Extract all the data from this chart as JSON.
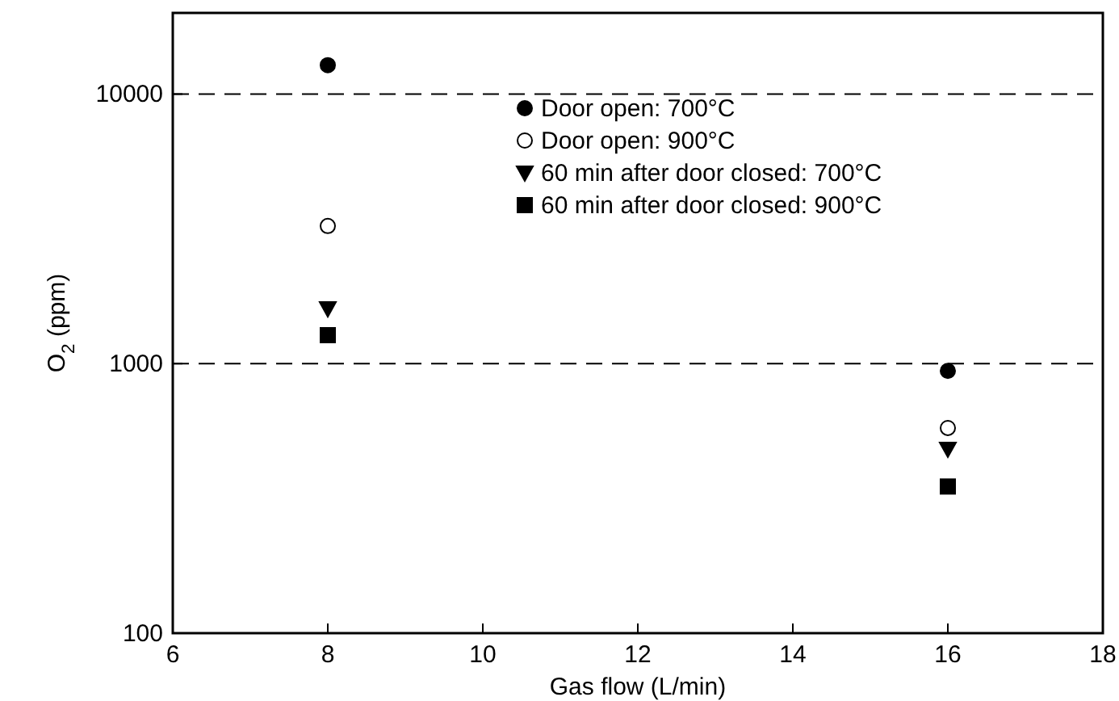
{
  "chart_data": {
    "type": "scatter",
    "xlabel": "Gas flow (L/min)",
    "ylabel": "O$_{2}$ (ppm)",
    "xlim": [
      6,
      18
    ],
    "xticks": [
      6,
      8,
      10,
      12,
      14,
      16,
      18
    ],
    "ylim": [
      100,
      20000
    ],
    "yticks": [
      100,
      1000,
      10000
    ],
    "log": "y",
    "grid": "y",
    "line_style": "dashed",
    "legend": "top right",
    "x": [
      8,
      16
    ],
    "series": [
      {
        "name": "Door open: 700°C",
        "color": "#000000",
        "marker": "circle",
        "values": [
          12800,
          940
        ]
      },
      {
        "name": "Door open: 900°C",
        "color": "#ffffff",
        "marker": "circle",
        "values": [
          3240,
          577
        ]
      },
      {
        "name": "60 min after door closed: 700°C",
        "color": "#000000",
        "marker": "triangle",
        "values": [
          1600,
          482
        ]
      },
      {
        "name": "60 min after door closed: 900°C",
        "color": "#000000",
        "marker": "square",
        "values": [
          1275,
          350
        ]
      }
    ]
  }
}
